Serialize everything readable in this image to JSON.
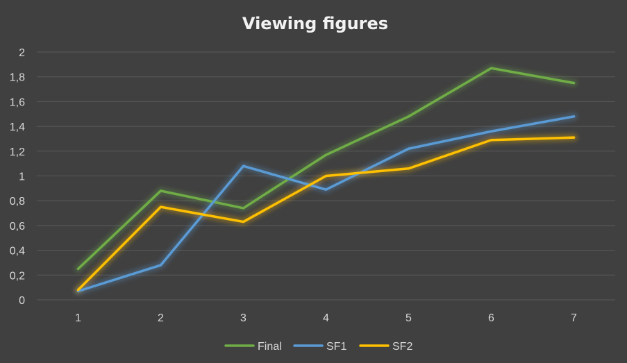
{
  "chart_data": {
    "type": "line",
    "title": "Viewing figures",
    "xlabel": "",
    "ylabel": "",
    "categories": [
      "1",
      "2",
      "3",
      "4",
      "5",
      "6",
      "7"
    ],
    "ylim": [
      0,
      2
    ],
    "yticks": [
      "0",
      "0,2",
      "0,4",
      "0,6",
      "0,8",
      "1",
      "1,2",
      "1,4",
      "1,6",
      "1,8",
      "2"
    ],
    "grid": true,
    "legend_position": "bottom",
    "series": [
      {
        "name": "Final",
        "color": "#70ad47",
        "values": [
          0.25,
          0.88,
          0.74,
          1.17,
          1.48,
          1.87,
          1.75
        ]
      },
      {
        "name": "SF1",
        "color": "#5b9bd5",
        "values": [
          0.07,
          0.28,
          1.08,
          0.89,
          1.22,
          1.36,
          1.48
        ]
      },
      {
        "name": "SF2",
        "color": "#ffc000",
        "values": [
          0.08,
          0.75,
          0.63,
          1.0,
          1.06,
          1.29,
          1.31
        ]
      }
    ]
  }
}
